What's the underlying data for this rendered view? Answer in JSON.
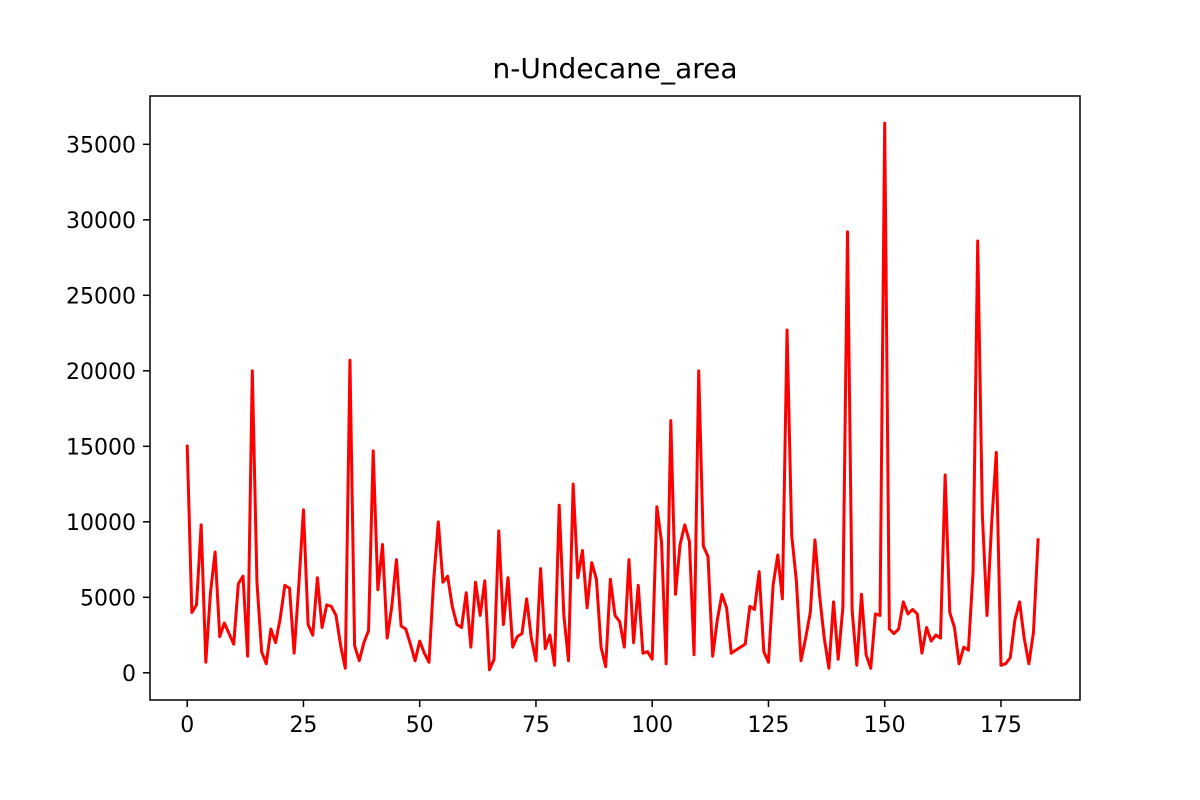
{
  "chart_data": {
    "type": "line",
    "title": "n-Undecane_area",
    "xlabel": "",
    "ylabel": "",
    "xlim": [
      -8,
      192
    ],
    "ylim": [
      -1800,
      38200
    ],
    "x_ticks": [
      0,
      25,
      50,
      75,
      100,
      125,
      150,
      175
    ],
    "y_ticks": [
      0,
      5000,
      10000,
      15000,
      20000,
      25000,
      30000,
      35000
    ],
    "grid": false,
    "legend": "none",
    "series": [
      {
        "color": "#ff0000",
        "x": [
          0,
          1,
          2,
          3,
          4,
          5,
          6,
          7,
          8,
          9,
          10,
          11,
          12,
          13,
          14,
          15,
          16,
          17,
          18,
          19,
          20,
          21,
          22,
          23,
          24,
          25,
          26,
          27,
          28,
          29,
          30,
          31,
          32,
          33,
          34,
          35,
          36,
          37,
          38,
          39,
          40,
          41,
          42,
          43,
          44,
          45,
          46,
          47,
          48,
          49,
          50,
          51,
          52,
          53,
          54,
          55,
          56,
          57,
          58,
          59,
          60,
          61,
          62,
          63,
          64,
          65,
          66,
          67,
          68,
          69,
          70,
          71,
          72,
          73,
          74,
          75,
          76,
          77,
          78,
          79,
          80,
          81,
          82,
          83,
          84,
          85,
          86,
          87,
          88,
          89,
          90,
          91,
          92,
          93,
          94,
          95,
          96,
          97,
          98,
          99,
          100,
          101,
          102,
          103,
          104,
          105,
          106,
          107,
          108,
          109,
          110,
          111,
          112,
          113,
          114,
          115,
          116,
          117,
          118,
          119,
          120,
          121,
          122,
          123,
          124,
          125,
          126,
          127,
          128,
          129,
          130,
          131,
          132,
          133,
          134,
          135,
          136,
          137,
          138,
          139,
          140,
          141,
          142,
          143,
          144,
          145,
          146,
          147,
          148,
          149,
          150,
          151,
          152,
          153,
          154,
          155,
          156,
          157,
          158,
          159,
          160,
          161,
          162,
          163,
          164,
          165,
          166,
          167,
          168,
          169,
          170,
          171,
          172,
          173,
          174,
          175,
          176,
          177,
          178,
          179,
          180,
          181,
          182,
          183
        ],
        "y": [
          15100,
          4000,
          4500,
          9800,
          700,
          5300,
          8000,
          2400,
          3300,
          2600,
          1900,
          5900,
          6400,
          1100,
          20000,
          6000,
          1400,
          600,
          2900,
          2000,
          3600,
          5800,
          5600,
          1300,
          5800,
          10800,
          3200,
          2500,
          6300,
          3000,
          4500,
          4400,
          3800,
          1800,
          300,
          20700,
          1800,
          800,
          2000,
          2800,
          14700,
          5500,
          8500,
          2300,
          4400,
          7500,
          3100,
          2900,
          1900,
          800,
          2100,
          1300,
          700,
          6100,
          10000,
          6000,
          6400,
          4400,
          3200,
          3000,
          5300,
          1700,
          6000,
          3800,
          6100,
          200,
          900,
          9400,
          3200,
          6300,
          1700,
          2400,
          2600,
          4900,
          2300,
          800,
          6900,
          1600,
          2500,
          500,
          11100,
          3800,
          800,
          12500,
          6300,
          8100,
          4300,
          7300,
          6200,
          1700,
          400,
          6200,
          3800,
          3400,
          1700,
          7500,
          2000,
          5800,
          1300,
          1400,
          900,
          11000,
          8700,
          600,
          16700,
          5200,
          8500,
          9800,
          8700,
          1200,
          20000,
          8400,
          7700,
          1100,
          3500,
          5200,
          4300,
          1300,
          1500,
          1700,
          1900,
          4400,
          4200,
          6700,
          1400,
          700,
          5800,
          7800,
          4900,
          22700,
          9100,
          6100,
          800,
          2300,
          4000,
          8800,
          5100,
          2300,
          300,
          4700,
          900,
          4300,
          29200,
          4100,
          500,
          5200,
          1200,
          300,
          3900,
          3800,
          36400,
          2900,
          2600,
          2900,
          4700,
          3900,
          4200,
          3900,
          1300,
          3000,
          2100,
          2500,
          2300,
          13100,
          4000,
          3000,
          600,
          1700,
          1500,
          6700,
          28600,
          10500,
          3800,
          9900,
          14600,
          500,
          600,
          1000,
          3500,
          4700,
          2300,
          600,
          2700,
          8900
        ]
      }
    ]
  }
}
